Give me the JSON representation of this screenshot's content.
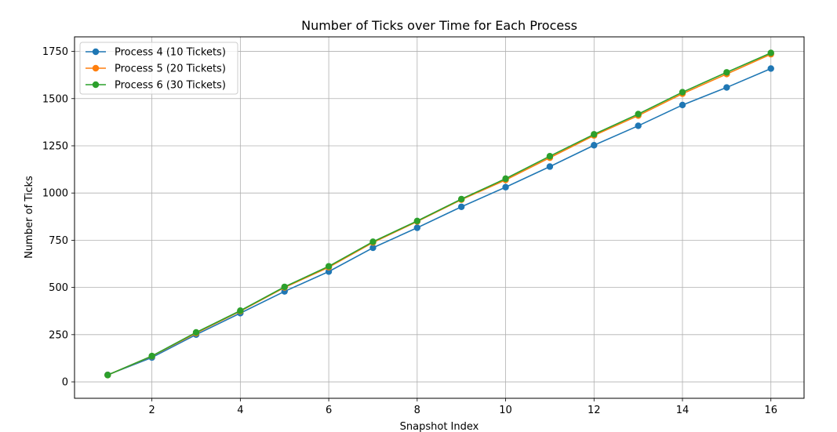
{
  "chart_data": {
    "type": "line",
    "title": "Number of Ticks over Time for Each Process",
    "xlabel": "Snapshot Index",
    "ylabel": "Number of Ticks",
    "xlim": [
      0.25,
      16.75
    ],
    "ylim": [
      -87,
      1827
    ],
    "xticks": [
      2,
      4,
      6,
      8,
      10,
      12,
      14,
      16
    ],
    "yticks": [
      0,
      250,
      500,
      750,
      1000,
      1250,
      1500,
      1750
    ],
    "grid": true,
    "legend_position": "top-left",
    "x": [
      1,
      2,
      3,
      4,
      5,
      6,
      7,
      8,
      9,
      10,
      11,
      12,
      13,
      14,
      15,
      16
    ],
    "series": [
      {
        "name": "Process 4 (10 Tickets)",
        "color": "#1f77b4",
        "values": [
          37,
          129,
          250,
          364,
          479,
          584,
          710,
          816,
          927,
          1031,
          1140,
          1253,
          1356,
          1466,
          1559,
          1659
        ]
      },
      {
        "name": "Process 5 (20 Tickets)",
        "color": "#ff7f0e",
        "values": [
          36,
          136,
          258,
          374,
          500,
          607,
          738,
          849,
          965,
          1069,
          1187,
          1305,
          1410,
          1526,
          1630,
          1735
        ]
      },
      {
        "name": "Process 6 (30 Tickets)",
        "color": "#2ca02c",
        "values": [
          36,
          137,
          262,
          377,
          503,
          612,
          742,
          852,
          968,
          1076,
          1195,
          1311,
          1418,
          1534,
          1639,
          1742
        ]
      }
    ]
  }
}
